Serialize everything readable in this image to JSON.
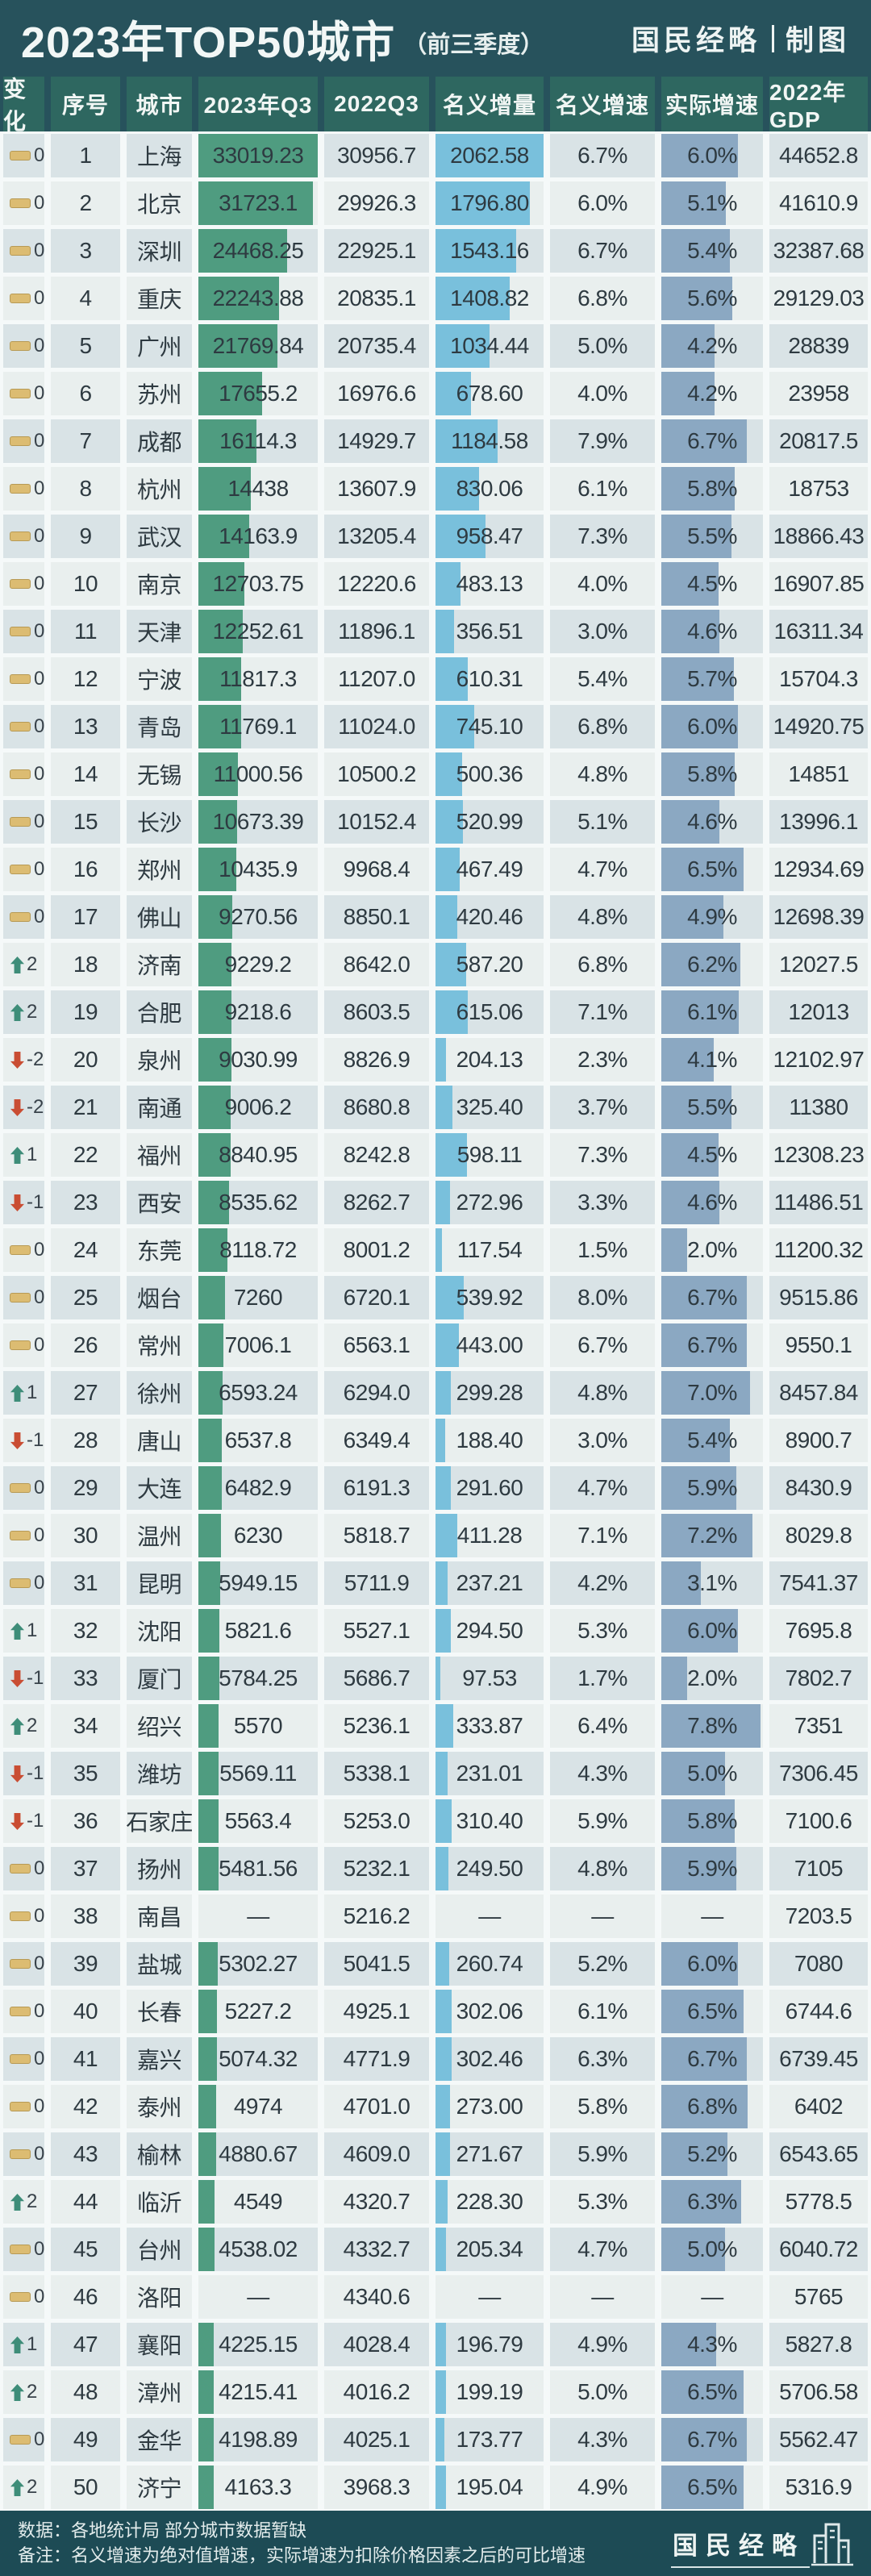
{
  "page": {
    "title_main": "2023年TOP50城市",
    "title_sub": "（前三季度）",
    "brand": "国民经略",
    "brand_suffix": "制图"
  },
  "footer": {
    "line1": "数据：各地统计局 部分城市数据暂缺",
    "line2": "备注：名义增速为绝对值增速，实际增速为扣除价格因素之后的可比增速",
    "brand": "国民经略"
  },
  "colors": {
    "title_bg": "#27525c",
    "header_bg": "#2e6760",
    "footer_bg": "#1d4b55",
    "bar_green": "#4f9c80",
    "bar_blue": "#79c0dc",
    "bar_slate": "#8ba8c2",
    "icon_up": "#3e8d79",
    "icon_down": "#c94d33",
    "icon_equal": "#dcbc72",
    "row_odd": "#d9e3e6",
    "row_even": "#e9efee"
  },
  "icons": {
    "up": "change-up-arrow-icon",
    "down": "change-down-arrow-icon",
    "same": "change-equal-icon",
    "footer_building": "city-buildings-icon"
  },
  "chart_data": {
    "type": "table",
    "title": "2023年TOP50城市（前三季度）",
    "columns": [
      "变化",
      "序号",
      "城市",
      "2023年Q3",
      "2022Q3",
      "名义增量",
      "名义增速",
      "实际增速",
      "2022年GDP"
    ],
    "bar_config": {
      "q3_2023_bar_max": 33019.23,
      "nominal_inc_bar_max": 2062.58,
      "real_growth_bar_max_pct": 8.0,
      "missing_placeholder": "—"
    },
    "rows": [
      [
        "same",
        "0",
        1,
        "上海",
        "33019.23",
        "30956.7",
        "2062.58",
        "6.7%",
        "6.0%",
        "44652.8"
      ],
      [
        "same",
        "0",
        2,
        "北京",
        "31723.1",
        "29926.3",
        "1796.80",
        "6.0%",
        "5.1%",
        "41610.9"
      ],
      [
        "same",
        "0",
        3,
        "深圳",
        "24468.25",
        "22925.1",
        "1543.16",
        "6.7%",
        "5.4%",
        "32387.68"
      ],
      [
        "same",
        "0",
        4,
        "重庆",
        "22243.88",
        "20835.1",
        "1408.82",
        "6.8%",
        "5.6%",
        "29129.03"
      ],
      [
        "same",
        "0",
        5,
        "广州",
        "21769.84",
        "20735.4",
        "1034.44",
        "5.0%",
        "4.2%",
        "28839"
      ],
      [
        "same",
        "0",
        6,
        "苏州",
        "17655.2",
        "16976.6",
        "678.60",
        "4.0%",
        "4.2%",
        "23958"
      ],
      [
        "same",
        "0",
        7,
        "成都",
        "16114.3",
        "14929.7",
        "1184.58",
        "7.9%",
        "6.7%",
        "20817.5"
      ],
      [
        "same",
        "0",
        8,
        "杭州",
        "14438",
        "13607.9",
        "830.06",
        "6.1%",
        "5.8%",
        "18753"
      ],
      [
        "same",
        "0",
        9,
        "武汉",
        "14163.9",
        "13205.4",
        "958.47",
        "7.3%",
        "5.5%",
        "18866.43"
      ],
      [
        "same",
        "0",
        10,
        "南京",
        "12703.75",
        "12220.6",
        "483.13",
        "4.0%",
        "4.5%",
        "16907.85"
      ],
      [
        "same",
        "0",
        11,
        "天津",
        "12252.61",
        "11896.1",
        "356.51",
        "3.0%",
        "4.6%",
        "16311.34"
      ],
      [
        "same",
        "0",
        12,
        "宁波",
        "11817.3",
        "11207.0",
        "610.31",
        "5.4%",
        "5.7%",
        "15704.3"
      ],
      [
        "same",
        "0",
        13,
        "青岛",
        "11769.1",
        "11024.0",
        "745.10",
        "6.8%",
        "6.0%",
        "14920.75"
      ],
      [
        "same",
        "0",
        14,
        "无锡",
        "11000.56",
        "10500.2",
        "500.36",
        "4.8%",
        "5.8%",
        "14851"
      ],
      [
        "same",
        "0",
        15,
        "长沙",
        "10673.39",
        "10152.4",
        "520.99",
        "5.1%",
        "4.6%",
        "13996.1"
      ],
      [
        "same",
        "0",
        16,
        "郑州",
        "10435.9",
        "9968.4",
        "467.49",
        "4.7%",
        "6.5%",
        "12934.69"
      ],
      [
        "same",
        "0",
        17,
        "佛山",
        "9270.56",
        "8850.1",
        "420.46",
        "4.8%",
        "4.9%",
        "12698.39"
      ],
      [
        "up",
        "2",
        18,
        "济南",
        "9229.2",
        "8642.0",
        "587.20",
        "6.8%",
        "6.2%",
        "12027.5"
      ],
      [
        "up",
        "2",
        19,
        "合肥",
        "9218.6",
        "8603.5",
        "615.06",
        "7.1%",
        "6.1%",
        "12013"
      ],
      [
        "down",
        "-2",
        20,
        "泉州",
        "9030.99",
        "8826.9",
        "204.13",
        "2.3%",
        "4.1%",
        "12102.97"
      ],
      [
        "down",
        "-2",
        21,
        "南通",
        "9006.2",
        "8680.8",
        "325.40",
        "3.7%",
        "5.5%",
        "11380"
      ],
      [
        "up",
        "1",
        22,
        "福州",
        "8840.95",
        "8242.8",
        "598.11",
        "7.3%",
        "4.5%",
        "12308.23"
      ],
      [
        "down",
        "-1",
        23,
        "西安",
        "8535.62",
        "8262.7",
        "272.96",
        "3.3%",
        "4.6%",
        "11486.51"
      ],
      [
        "same",
        "0",
        24,
        "东莞",
        "8118.72",
        "8001.2",
        "117.54",
        "1.5%",
        "2.0%",
        "11200.32"
      ],
      [
        "same",
        "0",
        25,
        "烟台",
        "7260",
        "6720.1",
        "539.92",
        "8.0%",
        "6.7%",
        "9515.86"
      ],
      [
        "same",
        "0",
        26,
        "常州",
        "7006.1",
        "6563.1",
        "443.00",
        "6.7%",
        "6.7%",
        "9550.1"
      ],
      [
        "up",
        "1",
        27,
        "徐州",
        "6593.24",
        "6294.0",
        "299.28",
        "4.8%",
        "7.0%",
        "8457.84"
      ],
      [
        "down",
        "-1",
        28,
        "唐山",
        "6537.8",
        "6349.4",
        "188.40",
        "3.0%",
        "5.4%",
        "8900.7"
      ],
      [
        "same",
        "0",
        29,
        "大连",
        "6482.9",
        "6191.3",
        "291.60",
        "4.7%",
        "5.9%",
        "8430.9"
      ],
      [
        "same",
        "0",
        30,
        "温州",
        "6230",
        "5818.7",
        "411.28",
        "7.1%",
        "7.2%",
        "8029.8"
      ],
      [
        "same",
        "0",
        31,
        "昆明",
        "5949.15",
        "5711.9",
        "237.21",
        "4.2%",
        "3.1%",
        "7541.37"
      ],
      [
        "up",
        "1",
        32,
        "沈阳",
        "5821.6",
        "5527.1",
        "294.50",
        "5.3%",
        "6.0%",
        "7695.8"
      ],
      [
        "down",
        "-1",
        33,
        "厦门",
        "5784.25",
        "5686.7",
        "97.53",
        "1.7%",
        "2.0%",
        "7802.7"
      ],
      [
        "up",
        "2",
        34,
        "绍兴",
        "5570",
        "5236.1",
        "333.87",
        "6.4%",
        "7.8%",
        "7351"
      ],
      [
        "down",
        "-1",
        35,
        "潍坊",
        "5569.11",
        "5338.1",
        "231.01",
        "4.3%",
        "5.0%",
        "7306.45"
      ],
      [
        "down",
        "-1",
        36,
        "石家庄",
        "5563.4",
        "5253.0",
        "310.40",
        "5.9%",
        "5.8%",
        "7100.6"
      ],
      [
        "same",
        "0",
        37,
        "扬州",
        "5481.56",
        "5232.1",
        "249.50",
        "4.8%",
        "5.9%",
        "7105"
      ],
      [
        "same",
        "0",
        38,
        "南昌",
        null,
        "5216.2",
        null,
        null,
        null,
        "7203.5"
      ],
      [
        "same",
        "0",
        39,
        "盐城",
        "5302.27",
        "5041.5",
        "260.74",
        "5.2%",
        "6.0%",
        "7080"
      ],
      [
        "same",
        "0",
        40,
        "长春",
        "5227.2",
        "4925.1",
        "302.06",
        "6.1%",
        "6.5%",
        "6744.6"
      ],
      [
        "same",
        "0",
        41,
        "嘉兴",
        "5074.32",
        "4771.9",
        "302.46",
        "6.3%",
        "6.7%",
        "6739.45"
      ],
      [
        "same",
        "0",
        42,
        "泰州",
        "4974",
        "4701.0",
        "273.00",
        "5.8%",
        "6.8%",
        "6402"
      ],
      [
        "same",
        "0",
        43,
        "榆林",
        "4880.67",
        "4609.0",
        "271.67",
        "5.9%",
        "5.2%",
        "6543.65"
      ],
      [
        "up",
        "2",
        44,
        "临沂",
        "4549",
        "4320.7",
        "228.30",
        "5.3%",
        "6.3%",
        "5778.5"
      ],
      [
        "same",
        "0",
        45,
        "台州",
        "4538.02",
        "4332.7",
        "205.34",
        "4.7%",
        "5.0%",
        "6040.72"
      ],
      [
        "same",
        "0",
        46,
        "洛阳",
        null,
        "4340.6",
        null,
        null,
        null,
        "5765"
      ],
      [
        "up",
        "1",
        47,
        "襄阳",
        "4225.15",
        "4028.4",
        "196.79",
        "4.9%",
        "4.3%",
        "5827.8"
      ],
      [
        "up",
        "2",
        48,
        "漳州",
        "4215.41",
        "4016.2",
        "199.19",
        "5.0%",
        "6.5%",
        "5706.58"
      ],
      [
        "same",
        "0",
        49,
        "金华",
        "4198.89",
        "4025.1",
        "173.77",
        "4.3%",
        "6.7%",
        "5562.47"
      ],
      [
        "up",
        "2",
        50,
        "济宁",
        "4163.3",
        "3968.3",
        "195.04",
        "4.9%",
        "6.5%",
        "5316.9"
      ]
    ]
  }
}
